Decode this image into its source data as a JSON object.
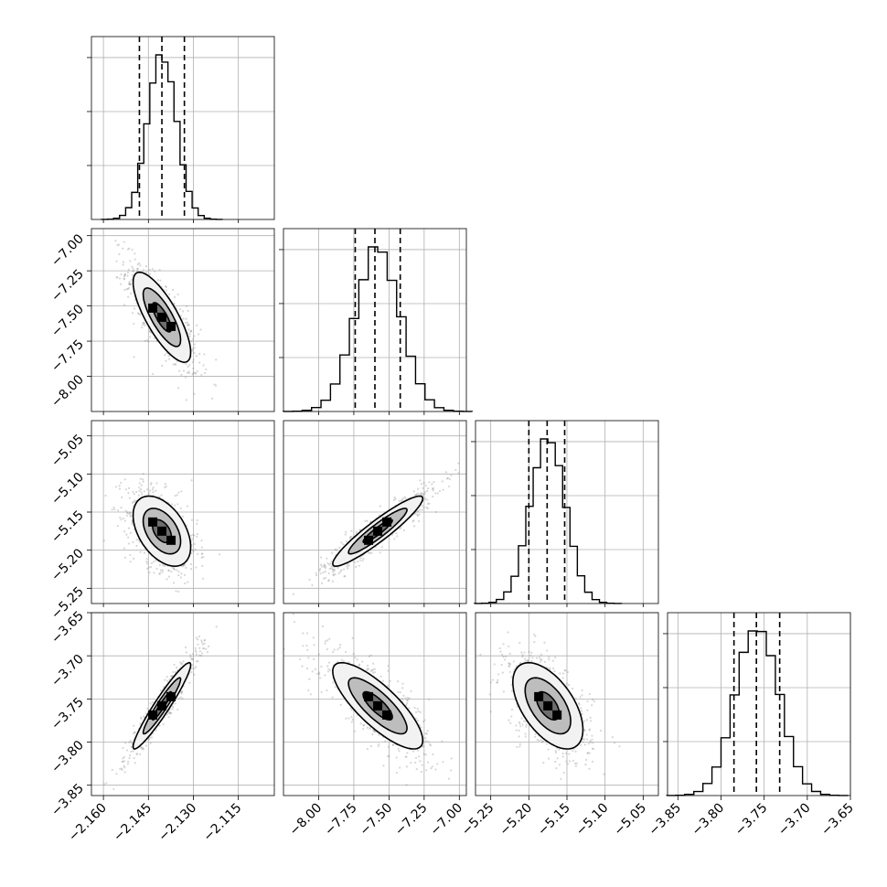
{
  "chart_data": {
    "type": "corner",
    "grid": true,
    "parameters": [
      {
        "range": [
          -2.164,
          -2.103
        ],
        "ticks": [
          -2.16,
          -2.145,
          -2.13,
          -2.115
        ],
        "tick_labels": [
          "−2.160",
          "−2.145",
          "−2.130",
          "−2.115"
        ],
        "quantiles": [
          -2.148,
          -2.1405,
          -2.133
        ],
        "mean": -2.1405,
        "sd": 0.0048
      },
      {
        "range": [
          -8.25,
          -6.95
        ],
        "ticks": [
          -8.0,
          -7.75,
          -7.5,
          -7.25,
          -7.0
        ],
        "tick_labels": [
          "−8.00",
          "−7.75",
          "−7.50",
          "−7.25",
          "−7.00"
        ],
        "quantiles": [
          -7.74,
          -7.6,
          -7.42
        ],
        "mean": -7.58,
        "sd": 0.16
      },
      {
        "range": [
          -5.27,
          -5.03
        ],
        "ticks": [
          -5.25,
          -5.2,
          -5.15,
          -5.1,
          -5.05
        ],
        "tick_labels": [
          "−5.25",
          "−5.20",
          "−5.15",
          "−5.10",
          "−5.05"
        ],
        "quantiles": [
          -5.2,
          -5.176,
          -5.153
        ],
        "mean": -5.175,
        "sd": 0.023
      },
      {
        "range": [
          -3.862,
          -3.65
        ],
        "ticks": [
          -3.85,
          -3.8,
          -3.75,
          -3.7,
          -3.65
        ],
        "tick_labels": [
          "−3.85",
          "−3.80",
          "−3.75",
          "−3.70",
          "−3.65"
        ],
        "quantiles": [
          -3.785,
          -3.759,
          -3.732
        ],
        "mean": -3.758,
        "sd": 0.025
      }
    ],
    "correlations": [
      {
        "pair": [
          1,
          0
        ],
        "rho": -0.78
      },
      {
        "pair": [
          2,
          0
        ],
        "rho": -0.45
      },
      {
        "pair": [
          2,
          1
        ],
        "rho": 0.93
      },
      {
        "pair": [
          3,
          0
        ],
        "rho": 0.95
      },
      {
        "pair": [
          3,
          1
        ],
        "rho": -0.8
      },
      {
        "pair": [
          3,
          2
        ],
        "rho": -0.55
      }
    ],
    "histogram_peak_ticks": 3
  }
}
